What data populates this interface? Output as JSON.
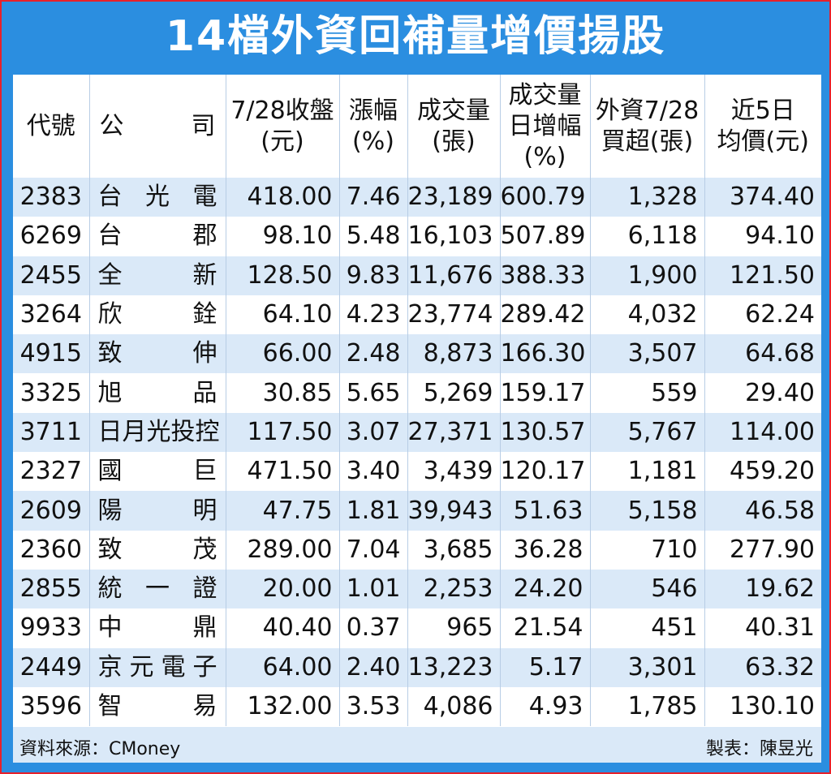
{
  "title": "14檔外資回補量增價揚股",
  "headers": {
    "code": "代號",
    "company_a": "公",
    "company_b": "司",
    "close_1": "7/28收盤",
    "close_2": "(元)",
    "change_1": "漲幅",
    "change_2": "(%)",
    "volume_1": "成交量",
    "volume_2": "(張)",
    "volgrowth_1": "成交量",
    "volgrowth_2": "日增幅",
    "volgrowth_3": "(%)",
    "foreign_1": "外資7/28",
    "foreign_2": "買超(張)",
    "avg_1": "近5日",
    "avg_2": "均價(元)"
  },
  "rows": [
    {
      "code": "2383",
      "company": "台光電",
      "close": "418.00",
      "change": "7.46",
      "volume": "23,189",
      "vol_growth": "600.79",
      "foreign": "1,328",
      "avg5": "374.40"
    },
    {
      "code": "6269",
      "company": "台郡",
      "close": "98.10",
      "change": "5.48",
      "volume": "16,103",
      "vol_growth": "507.89",
      "foreign": "6,118",
      "avg5": "94.10"
    },
    {
      "code": "2455",
      "company": "全新",
      "close": "128.50",
      "change": "9.83",
      "volume": "11,676",
      "vol_growth": "388.33",
      "foreign": "1,900",
      "avg5": "121.50"
    },
    {
      "code": "3264",
      "company": "欣銓",
      "close": "64.10",
      "change": "4.23",
      "volume": "23,774",
      "vol_growth": "289.42",
      "foreign": "4,032",
      "avg5": "62.24"
    },
    {
      "code": "4915",
      "company": "致伸",
      "close": "66.00",
      "change": "2.48",
      "volume": "8,873",
      "vol_growth": "166.30",
      "foreign": "3,507",
      "avg5": "64.68"
    },
    {
      "code": "3325",
      "company": "旭品",
      "close": "30.85",
      "change": "5.65",
      "volume": "5,269",
      "vol_growth": "159.17",
      "foreign": "559",
      "avg5": "29.40"
    },
    {
      "code": "3711",
      "company": "日月光投控",
      "close": "117.50",
      "change": "3.07",
      "volume": "27,371",
      "vol_growth": "130.57",
      "foreign": "5,767",
      "avg5": "114.00"
    },
    {
      "code": "2327",
      "company": "國巨",
      "close": "471.50",
      "change": "3.40",
      "volume": "3,439",
      "vol_growth": "120.17",
      "foreign": "1,181",
      "avg5": "459.20"
    },
    {
      "code": "2609",
      "company": "陽明",
      "close": "47.75",
      "change": "1.81",
      "volume": "39,943",
      "vol_growth": "51.63",
      "foreign": "5,158",
      "avg5": "46.58"
    },
    {
      "code": "2360",
      "company": "致茂",
      "close": "289.00",
      "change": "7.04",
      "volume": "3,685",
      "vol_growth": "36.28",
      "foreign": "710",
      "avg5": "277.90"
    },
    {
      "code": "2855",
      "company": "統一證",
      "close": "20.00",
      "change": "1.01",
      "volume": "2,253",
      "vol_growth": "24.20",
      "foreign": "546",
      "avg5": "19.62"
    },
    {
      "code": "9933",
      "company": "中鼎",
      "close": "40.40",
      "change": "0.37",
      "volume": "965",
      "vol_growth": "21.54",
      "foreign": "451",
      "avg5": "40.31"
    },
    {
      "code": "2449",
      "company": "京元電子",
      "close": "64.00",
      "change": "2.40",
      "volume": "13,223",
      "vol_growth": "5.17",
      "foreign": "3,301",
      "avg5": "63.32"
    },
    {
      "code": "3596",
      "company": "智易",
      "close": "132.00",
      "change": "3.53",
      "volume": "4,086",
      "vol_growth": "4.93",
      "foreign": "1,785",
      "avg5": "130.10"
    }
  ],
  "footer": {
    "source": "資料來源：CMoney",
    "maker": "製表：陳昱光"
  }
}
